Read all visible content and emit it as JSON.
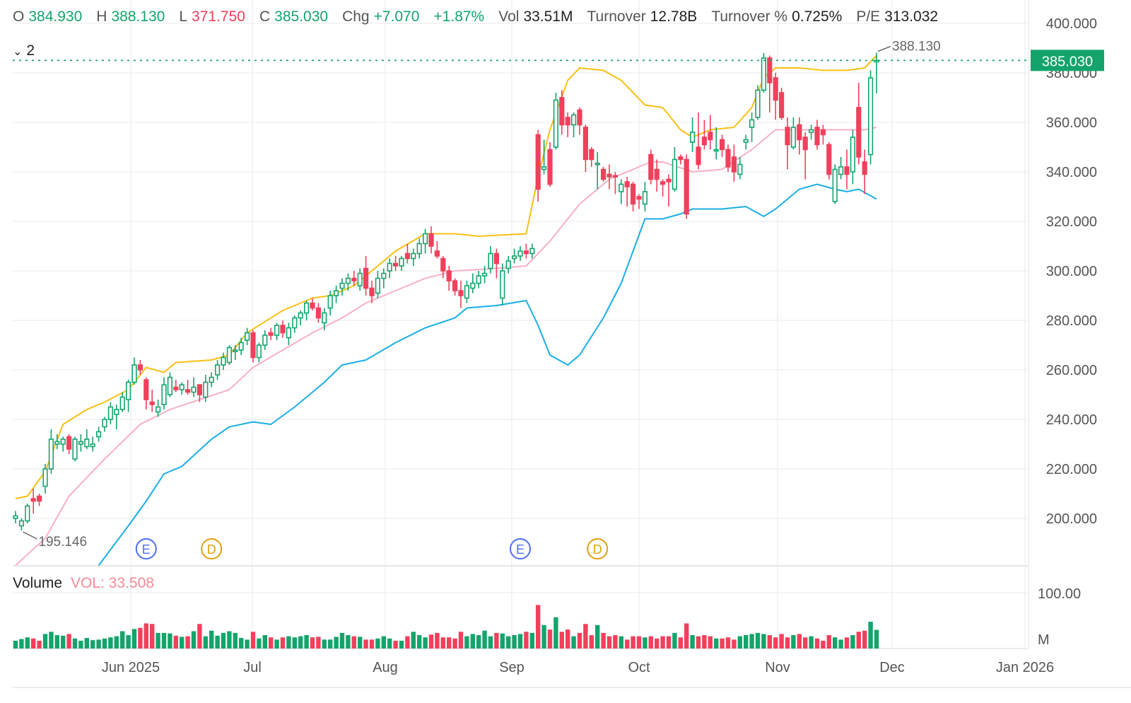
{
  "header": {
    "open_label": "O",
    "open": "384.930",
    "high_label": "H",
    "high": "388.130",
    "low_label": "L",
    "low": "371.750",
    "close_label": "C",
    "close": "385.030",
    "chg_label": "Chg",
    "chg": "+7.070",
    "chg_pct": "+1.87%",
    "vol_label": "Vol",
    "vol": "33.51M",
    "turnover_label": "Turnover",
    "turnover": "12.78B",
    "turnover_pct_label": "Turnover %",
    "turnover_pct": "0.725%",
    "pe_label": "P/E",
    "pe": "313.032"
  },
  "indicator_toggle": {
    "icon": "chevron-down-icon",
    "count": "2"
  },
  "volume_pane": {
    "title": "Volume",
    "value": "VOL: 33.508",
    "axis_top": "100.00",
    "axis_unit": "M"
  },
  "colors": {
    "up": "#14a46b",
    "down": "#f0405c",
    "upper_band": "#f9c015",
    "mid_band": "#f8b0c6",
    "lower_band": "#1aaee6",
    "last_price_bg": "#14a46b"
  },
  "chart_data": {
    "type": "candlestick",
    "title": "",
    "x_axis_labels": [
      "Jun 2025",
      "Jul",
      "Aug",
      "Sep",
      "Oct",
      "Nov",
      "Dec",
      "Jan 2026"
    ],
    "y_ticks": [
      "400.000",
      "380.000",
      "360.000",
      "340.000",
      "320.000",
      "300.000",
      "280.000",
      "260.000",
      "240.000",
      "220.000",
      "200.000"
    ],
    "ylim": [
      180,
      400
    ],
    "last_price": "385.030",
    "high_label": "388.130",
    "low_label": "195.146",
    "event_markers": [
      {
        "label": "E",
        "bar": 22
      },
      {
        "label": "D",
        "bar": 33
      },
      {
        "label": "E",
        "bar": 85
      },
      {
        "label": "D",
        "bar": 98
      }
    ],
    "ohlc": [
      [
        200,
        203,
        198,
        201
      ],
      [
        197,
        200,
        195.146,
        199
      ],
      [
        199,
        206,
        198,
        205
      ],
      [
        208,
        212,
        202,
        207
      ],
      [
        209,
        210,
        205,
        207
      ],
      [
        213,
        222,
        210,
        220
      ],
      [
        220,
        236,
        218,
        232
      ],
      [
        230,
        234,
        228,
        231
      ],
      [
        230,
        233,
        227,
        232
      ],
      [
        233,
        234,
        226,
        228
      ],
      [
        224,
        233,
        223,
        232
      ],
      [
        230,
        234,
        227,
        231
      ],
      [
        229,
        236,
        228,
        232
      ],
      [
        229,
        233,
        227,
        230
      ],
      [
        233,
        237,
        231,
        235
      ],
      [
        237,
        241,
        235,
        240
      ],
      [
        240,
        247,
        238,
        245
      ],
      [
        242,
        246,
        236,
        244
      ],
      [
        244,
        251,
        243,
        249
      ],
      [
        248,
        256,
        243,
        255
      ],
      [
        255,
        265,
        254,
        262
      ],
      [
        262,
        264,
        258,
        260
      ],
      [
        256,
        257,
        244,
        248
      ],
      [
        247,
        252,
        243,
        246
      ],
      [
        243,
        248,
        241,
        245
      ],
      [
        246,
        257,
        244,
        254
      ],
      [
        250,
        259,
        249,
        257
      ],
      [
        253,
        256,
        251,
        252
      ],
      [
        252,
        255,
        250,
        254
      ],
      [
        252,
        256,
        250,
        251
      ],
      [
        251,
        257,
        249,
        253
      ],
      [
        254,
        254,
        247,
        250
      ],
      [
        249,
        258,
        247,
        255
      ],
      [
        255,
        259,
        253,
        257
      ],
      [
        258,
        264,
        256,
        262
      ],
      [
        262,
        267,
        260,
        265
      ],
      [
        263,
        270,
        262,
        269
      ],
      [
        268,
        270,
        264,
        268
      ],
      [
        268,
        273,
        266,
        271
      ],
      [
        272,
        277,
        270,
        275
      ],
      [
        275,
        276,
        263,
        265
      ],
      [
        265,
        271,
        263,
        270
      ],
      [
        270,
        276,
        268,
        274
      ],
      [
        275,
        277,
        272,
        274
      ],
      [
        274,
        279,
        272,
        278
      ],
      [
        278,
        280,
        273,
        275
      ],
      [
        273,
        279,
        270,
        277
      ],
      [
        277,
        282,
        275,
        281
      ],
      [
        281,
        284,
        278,
        283
      ],
      [
        283,
        288,
        280,
        287
      ],
      [
        287,
        289,
        284,
        285
      ],
      [
        285,
        287,
        279,
        281
      ],
      [
        279,
        285,
        276,
        283
      ],
      [
        285,
        292,
        282,
        290
      ],
      [
        290,
        294,
        287,
        292
      ],
      [
        293,
        297,
        290,
        295
      ],
      [
        295,
        299,
        292,
        297
      ],
      [
        297,
        300,
        294,
        296
      ],
      [
        294,
        301,
        292,
        299
      ],
      [
        301,
        306,
        290,
        293
      ],
      [
        293,
        296,
        287,
        290
      ],
      [
        291,
        300,
        289,
        297
      ],
      [
        297,
        301,
        293,
        299
      ],
      [
        300,
        305,
        297,
        303
      ],
      [
        303,
        306,
        300,
        302
      ],
      [
        302,
        306,
        300,
        305
      ],
      [
        307,
        311,
        303,
        305
      ],
      [
        305,
        309,
        302,
        307
      ],
      [
        307,
        313,
        305,
        311
      ],
      [
        311,
        317,
        307,
        315
      ],
      [
        315,
        318,
        307,
        310
      ],
      [
        308,
        312,
        305,
        306
      ],
      [
        305,
        306,
        297,
        300
      ],
      [
        300,
        302,
        292,
        296
      ],
      [
        296,
        297,
        290,
        292
      ],
      [
        292,
        296,
        285,
        290
      ],
      [
        289,
        296,
        287,
        294
      ],
      [
        293,
        299,
        291,
        295
      ],
      [
        295,
        300,
        293,
        298
      ],
      [
        298,
        302,
        295,
        299
      ],
      [
        301,
        310,
        299,
        307
      ],
      [
        307,
        309,
        297,
        303
      ],
      [
        289,
        303,
        286,
        300
      ],
      [
        301,
        306,
        299,
        304
      ],
      [
        305,
        309,
        303,
        306
      ],
      [
        306,
        310,
        304,
        308
      ],
      [
        308,
        311,
        305,
        307
      ],
      [
        307,
        311,
        305,
        309
      ],
      [
        355,
        357,
        328,
        333
      ],
      [
        341,
        353,
        339,
        342
      ],
      [
        349,
        352,
        334,
        335
      ],
      [
        350,
        372,
        349,
        369
      ],
      [
        370,
        373,
        355,
        359
      ],
      [
        362,
        364,
        354,
        359
      ],
      [
        359,
        364,
        354,
        363
      ],
      [
        365,
        366,
        355,
        359
      ],
      [
        358,
        359,
        340,
        345
      ],
      [
        349,
        350,
        342,
        345
      ],
      [
        343,
        348,
        333,
        343.5
      ],
      [
        341,
        342,
        336,
        337
      ],
      [
        339,
        343,
        333,
        338
      ],
      [
        338.5,
        340,
        331,
        338
      ],
      [
        332,
        337,
        327,
        335
      ],
      [
        336,
        338,
        326,
        334
      ],
      [
        335,
        336,
        324,
        327
      ],
      [
        330,
        331,
        325,
        329
      ],
      [
        327,
        336,
        324,
        332
      ],
      [
        347,
        349,
        335,
        337
      ],
      [
        341,
        345,
        332,
        337
      ],
      [
        336,
        337,
        330,
        335
      ],
      [
        337,
        339,
        326,
        336
      ],
      [
        333,
        350,
        332,
        345
      ],
      [
        346,
        347,
        343,
        345
      ],
      [
        345,
        347,
        321,
        323
      ],
      [
        352,
        362,
        348,
        356
      ],
      [
        350,
        364,
        341,
        343
      ],
      [
        354,
        361,
        349,
        351
      ],
      [
        356,
        363,
        349,
        353
      ],
      [
        349,
        358,
        345,
        349
      ],
      [
        353,
        355,
        346,
        349
      ],
      [
        349,
        351,
        340,
        342
      ],
      [
        346,
        351,
        336,
        340
      ],
      [
        339,
        346,
        337,
        343
      ],
      [
        352,
        355,
        349,
        353
      ],
      [
        358,
        364,
        352,
        361
      ],
      [
        362,
        375,
        361,
        373
      ],
      [
        373,
        388,
        372,
        386
      ],
      [
        386,
        387,
        364,
        376
      ],
      [
        378,
        380,
        361,
        369
      ],
      [
        372,
        374,
        361,
        362
      ],
      [
        358,
        362,
        341,
        351
      ],
      [
        350,
        362,
        349,
        358
      ],
      [
        359,
        362,
        347,
        353
      ],
      [
        354,
        356,
        337,
        349
      ],
      [
        356,
        359,
        353,
        357
      ],
      [
        358,
        361,
        349,
        351
      ],
      [
        357,
        359,
        351,
        355
      ],
      [
        351,
        352,
        337,
        339
      ],
      [
        328,
        343,
        327,
        341
      ],
      [
        339,
        346,
        337,
        342
      ],
      [
        342,
        349,
        333,
        339
      ],
      [
        340,
        357,
        335,
        354
      ],
      [
        366,
        376,
        343,
        346
      ],
      [
        344,
        349,
        331,
        339
      ],
      [
        347,
        381,
        343,
        377.96
      ],
      [
        384.93,
        388.13,
        371.75,
        385.03
      ]
    ],
    "volume": [
      14,
      17,
      20,
      18,
      14,
      26,
      30,
      24,
      23,
      26,
      18,
      14,
      19,
      15,
      16,
      18,
      20,
      22,
      31,
      24,
      35,
      37,
      45,
      44,
      28,
      28,
      27,
      23,
      21,
      22,
      31,
      44,
      22,
      32,
      23,
      28,
      31,
      28,
      19,
      16,
      30,
      18,
      24,
      20,
      16,
      20,
      22,
      20,
      22,
      24,
      20,
      21,
      16,
      16,
      21,
      28,
      24,
      22,
      21,
      16,
      16,
      18,
      22,
      18,
      14,
      14,
      22,
      30,
      24,
      20,
      25,
      28,
      20,
      20,
      18,
      30,
      22,
      26,
      24,
      32,
      22,
      28,
      27,
      22,
      24,
      26,
      30,
      28,
      78,
      42,
      34,
      56,
      30,
      34,
      22,
      28,
      44,
      24,
      42,
      28,
      22,
      24,
      22,
      16,
      22,
      22,
      20,
      22,
      18,
      22,
      22,
      28,
      20,
      45,
      24,
      22,
      24,
      22,
      18,
      18,
      20,
      16,
      22,
      24,
      26,
      28,
      26,
      24,
      20,
      26,
      20,
      24,
      26,
      20,
      22,
      18,
      14,
      24,
      20,
      16,
      20,
      24,
      30,
      32,
      48,
      33.508
    ],
    "bollinger": {
      "x_unit": "bar index",
      "upper": [
        [
          0,
          208
        ],
        [
          2,
          209
        ],
        [
          5,
          219
        ],
        [
          8,
          238
        ],
        [
          12,
          244
        ],
        [
          15,
          247
        ],
        [
          19,
          252
        ],
        [
          22,
          261
        ],
        [
          25,
          259
        ],
        [
          27,
          263
        ],
        [
          33,
          264
        ],
        [
          36,
          266
        ],
        [
          39,
          275
        ],
        [
          45,
          284
        ],
        [
          50,
          289
        ],
        [
          53,
          290
        ],
        [
          57,
          294
        ],
        [
          61,
          302
        ],
        [
          64,
          308
        ],
        [
          69,
          315
        ],
        [
          74,
          315
        ],
        [
          78,
          314
        ],
        [
          86,
          315
        ],
        [
          88,
          338
        ],
        [
          90,
          357
        ],
        [
          93,
          377
        ],
        [
          95,
          382
        ],
        [
          99,
          381
        ],
        [
          102,
          377
        ],
        [
          106,
          367
        ],
        [
          109,
          366
        ],
        [
          112,
          357
        ],
        [
          114,
          354
        ],
        [
          117,
          357
        ],
        [
          121,
          358
        ],
        [
          124,
          366
        ],
        [
          126,
          378
        ],
        [
          128,
          382
        ],
        [
          132,
          382
        ],
        [
          136,
          381
        ],
        [
          140,
          381
        ],
        [
          143,
          382
        ],
        [
          145,
          387
        ]
      ],
      "middle": [
        [
          0,
          181
        ],
        [
          5,
          192
        ],
        [
          9,
          209
        ],
        [
          15,
          224
        ],
        [
          21,
          238
        ],
        [
          26,
          244
        ],
        [
          31,
          248
        ],
        [
          36,
          252
        ],
        [
          40,
          261
        ],
        [
          45,
          268
        ],
        [
          50,
          275
        ],
        [
          55,
          281
        ],
        [
          59,
          287
        ],
        [
          64,
          292
        ],
        [
          69,
          297
        ],
        [
          74,
          300
        ],
        [
          81,
          301
        ],
        [
          86,
          302
        ],
        [
          90,
          312
        ],
        [
          95,
          327
        ],
        [
          100,
          337
        ],
        [
          105,
          342
        ],
        [
          107,
          344
        ],
        [
          109,
          344
        ],
        [
          114,
          340
        ],
        [
          119,
          341
        ],
        [
          124,
          349
        ],
        [
          128,
          357
        ],
        [
          133,
          357
        ],
        [
          138,
          357
        ],
        [
          143,
          357
        ],
        [
          145,
          358
        ]
      ],
      "lower": [
        [
          14,
          181
        ],
        [
          19,
          197
        ],
        [
          22,
          207
        ],
        [
          25,
          218
        ],
        [
          28,
          221
        ],
        [
          33,
          232
        ],
        [
          36,
          237
        ],
        [
          40,
          239
        ],
        [
          43,
          238
        ],
        [
          47,
          245
        ],
        [
          52,
          255
        ],
        [
          55,
          262
        ],
        [
          59,
          264
        ],
        [
          64,
          271
        ],
        [
          69,
          277
        ],
        [
          74,
          281
        ],
        [
          76,
          285
        ],
        [
          81,
          286
        ],
        [
          86,
          288
        ],
        [
          88,
          278
        ],
        [
          90,
          266
        ],
        [
          93,
          262
        ],
        [
          95,
          266
        ],
        [
          99,
          281
        ],
        [
          102,
          295
        ],
        [
          106,
          321
        ],
        [
          109,
          321
        ],
        [
          112,
          323
        ],
        [
          114,
          325
        ],
        [
          119,
          325
        ],
        [
          123,
          326
        ],
        [
          126,
          322
        ],
        [
          128,
          325
        ],
        [
          132,
          333
        ],
        [
          135,
          335
        ],
        [
          138,
          333
        ],
        [
          140,
          332
        ],
        [
          142,
          333
        ],
        [
          145,
          329
        ]
      ]
    }
  }
}
